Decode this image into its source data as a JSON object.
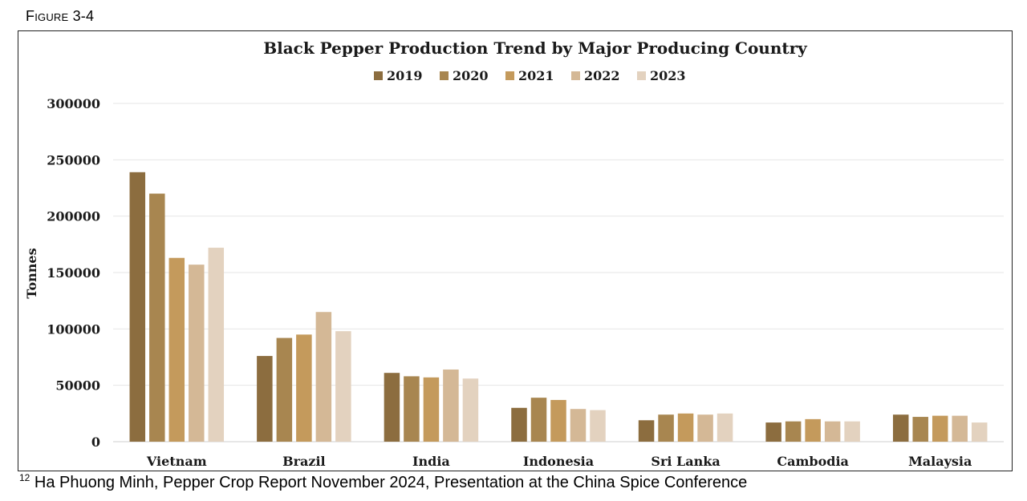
{
  "figure_label": "Figure 3-4",
  "footnote": {
    "number": "12",
    "text": "Ha Phuong Minh, Pepper Crop Report November 2024, Presentation at the China Spice Conference"
  },
  "chart_data": {
    "type": "bar",
    "title": "Black Pepper Production Trend by Major Producing Country",
    "xlabel": "",
    "ylabel": "Tonnes",
    "ylim": [
      0,
      300000
    ],
    "yticks": [
      "0",
      "50000",
      "100000",
      "150000",
      "200000",
      "250000",
      "300000"
    ],
    "grid": true,
    "legend_position": "top",
    "categories": [
      "Vietnam",
      "Brazil",
      "India",
      "Indonesia",
      "Sri Lanka",
      "Cambodia",
      "Malaysia"
    ],
    "series": [
      {
        "name": "2019",
        "color": "#8c6d3f",
        "values": [
          239000,
          76000,
          61000,
          30000,
          19000,
          17000,
          24000
        ]
      },
      {
        "name": "2020",
        "color": "#a88650",
        "values": [
          220000,
          92000,
          58000,
          39000,
          24000,
          18000,
          22000
        ]
      },
      {
        "name": "2021",
        "color": "#c49a5c",
        "values": [
          163000,
          95000,
          57000,
          37000,
          25000,
          20000,
          23000
        ]
      },
      {
        "name": "2022",
        "color": "#d4b896",
        "values": [
          157000,
          115000,
          64000,
          29000,
          24000,
          18000,
          23000
        ]
      },
      {
        "name": "2023",
        "color": "#e3d2bf",
        "values": [
          172000,
          98000,
          56000,
          28000,
          25000,
          18000,
          17000
        ]
      }
    ]
  }
}
